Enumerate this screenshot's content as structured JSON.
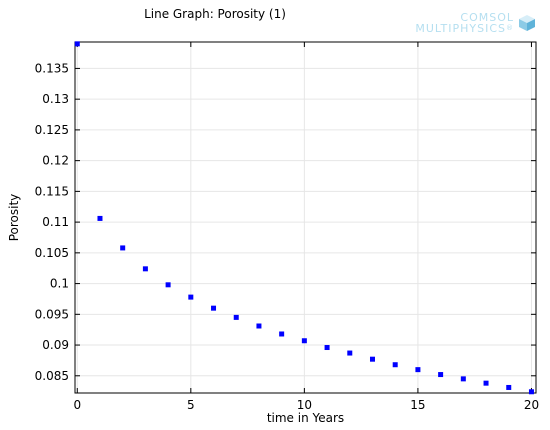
{
  "logo": {
    "line1": "COMSOL",
    "line2": "MULTIPHYSICS",
    "mark": "®",
    "icon": "cube-icon"
  },
  "chart_data": {
    "type": "scatter",
    "title": "Line Graph: Porosity (1)",
    "xlabel": "time in Years",
    "ylabel": "Porosity",
    "xlim": [
      -0.1,
      20.2
    ],
    "ylim": [
      0.0822,
      0.1393
    ],
    "xticks": [
      {
        "value": 0,
        "label": "0"
      },
      {
        "value": 5,
        "label": "5"
      },
      {
        "value": 10,
        "label": "10"
      },
      {
        "value": 15,
        "label": "15"
      },
      {
        "value": 20,
        "label": "20"
      }
    ],
    "yticks": [
      {
        "value": 0.085,
        "label": "0.085"
      },
      {
        "value": 0.09,
        "label": "0.09"
      },
      {
        "value": 0.095,
        "label": "0.095"
      },
      {
        "value": 0.1,
        "label": "0.1"
      },
      {
        "value": 0.105,
        "label": "0.105"
      },
      {
        "value": 0.11,
        "label": "0.11"
      },
      {
        "value": 0.115,
        "label": "0.115"
      },
      {
        "value": 0.12,
        "label": "0.12"
      },
      {
        "value": 0.125,
        "label": "0.125"
      },
      {
        "value": 0.13,
        "label": "0.13"
      },
      {
        "value": 0.135,
        "label": "0.135"
      }
    ],
    "grid": true,
    "marker_color": "#0000ff",
    "series": [
      {
        "x": [
          0,
          1,
          2,
          3,
          4,
          5,
          6,
          7,
          8,
          9,
          10,
          11,
          12,
          13,
          14,
          15,
          16,
          17,
          18,
          19,
          20
        ],
        "values": [
          0.139,
          0.1106,
          0.1058,
          0.1024,
          0.0998,
          0.0978,
          0.096,
          0.0945,
          0.0931,
          0.0918,
          0.0907,
          0.0896,
          0.0887,
          0.0877,
          0.0868,
          0.086,
          0.0852,
          0.0845,
          0.0838,
          0.0831,
          0.0824
        ]
      }
    ]
  }
}
